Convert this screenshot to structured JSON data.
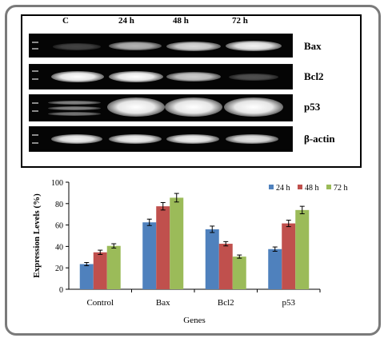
{
  "gel": {
    "lane_labels": [
      "C",
      "24 h",
      "48 h",
      "72 h"
    ],
    "row_labels": [
      "Bax",
      "Bcl2",
      "p53",
      "β-actin"
    ]
  },
  "chart_data": {
    "type": "bar",
    "categories": [
      "Control",
      "Bax",
      "Bcl2",
      "p53"
    ],
    "series": [
      {
        "name": "24 h",
        "color": "#4f81bd",
        "values": [
          23.5,
          62.5,
          56,
          37.5
        ],
        "errors": [
          1.5,
          3,
          3,
          2
        ]
      },
      {
        "name": "48 h",
        "color": "#c0504d",
        "values": [
          34.5,
          77.5,
          42.5,
          61.5
        ],
        "errors": [
          2,
          3.5,
          2,
          3
        ]
      },
      {
        "name": "72 h",
        "color": "#9bbb59",
        "values": [
          40.5,
          85.5,
          30.5,
          74
        ],
        "errors": [
          2,
          4,
          1.5,
          3.5
        ]
      }
    ],
    "xlabel": "Genes",
    "ylabel": "Expression Levels (%)",
    "ylim": [
      0,
      100
    ],
    "yticks": [
      0,
      20,
      40,
      60,
      80,
      100
    ],
    "grid": false,
    "legend_position": "top-right"
  }
}
